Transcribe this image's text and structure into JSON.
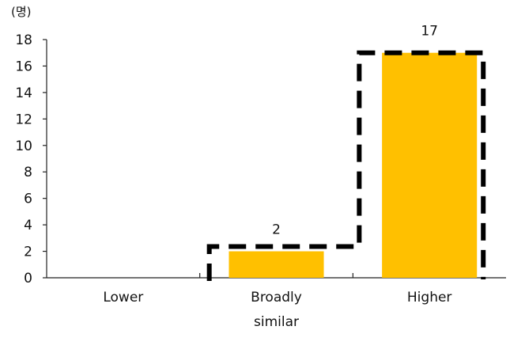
{
  "chart_data": {
    "type": "bar",
    "unit_label": "(명)",
    "categories": [
      {
        "label_lines": [
          "Lower"
        ]
      },
      {
        "label_lines": [
          "Broadly",
          "similar"
        ]
      },
      {
        "label_lines": [
          "Higher"
        ]
      }
    ],
    "values": [
      0,
      2,
      17
    ],
    "data_labels": [
      "",
      "2",
      "17"
    ],
    "ylim": [
      0,
      18
    ],
    "yticks": [
      0,
      2,
      4,
      6,
      8,
      10,
      12,
      14,
      16,
      18
    ],
    "grid": false,
    "legend": "none",
    "bar_color": "#FFC000",
    "outline_style": "black dashed cumulative outline",
    "outline_color": "#000000"
  }
}
